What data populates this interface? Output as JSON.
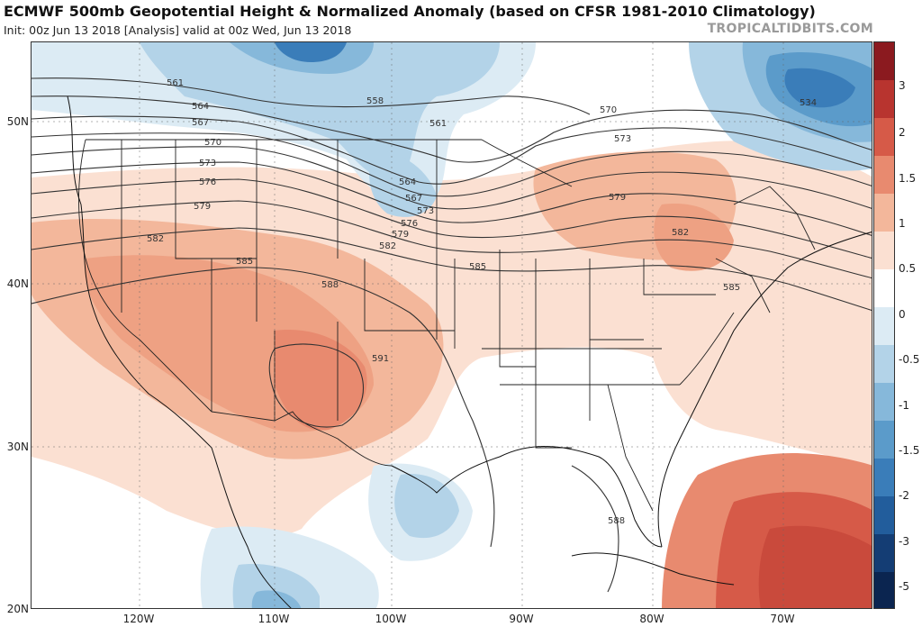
{
  "header": {
    "title": "ECMWF 500mb Geopotential Height & Normalized Anomaly (based on CFSR 1981-2010 Climatology)",
    "subtitle": "Init: 00z Jun 13 2018   [Analysis]   valid at 00z Wed, Jun 13 2018",
    "credit": "TROPICALTIDBITS.COM"
  },
  "axes": {
    "lat_labels": [
      "50N",
      "40N",
      "30N",
      "20N"
    ],
    "lon_labels": [
      "120W",
      "110W",
      "100W",
      "90W",
      "80W",
      "70W"
    ]
  },
  "colorbar": {
    "labels": [
      "3",
      "2",
      "1.5",
      "1",
      "0.5",
      "0",
      "-0.5",
      "-1",
      "-1.5",
      "-2",
      "-3",
      "-5"
    ],
    "colors": [
      "#8b1a1f",
      "#b8342f",
      "#d65a48",
      "#e88a6f",
      "#f3b79b",
      "#fbe0d2",
      "#ffffff",
      "#dcebf4",
      "#b3d3e8",
      "#86b8da",
      "#5b9bca",
      "#3a7db9",
      "#225d9c",
      "#143d74",
      "#0b2550"
    ]
  },
  "contour_labels": [
    "561",
    "564",
    "567",
    "570",
    "573",
    "576",
    "579",
    "582",
    "585",
    "588",
    "591",
    "558",
    "561",
    "564",
    "567",
    "573",
    "576",
    "579",
    "582",
    "585",
    "570",
    "573",
    "579",
    "582",
    "585",
    "588",
    "534"
  ],
  "colors": {
    "positive_light": "#fbe0d2",
    "positive_mid": "#f3b79b",
    "positive_strong": "#e88a6f",
    "positive_max": "#d65a48",
    "negative_light": "#dcebf4",
    "negative_mid": "#b3d3e8",
    "negative_strong": "#86b8da",
    "negative_max": "#3a7db9"
  }
}
